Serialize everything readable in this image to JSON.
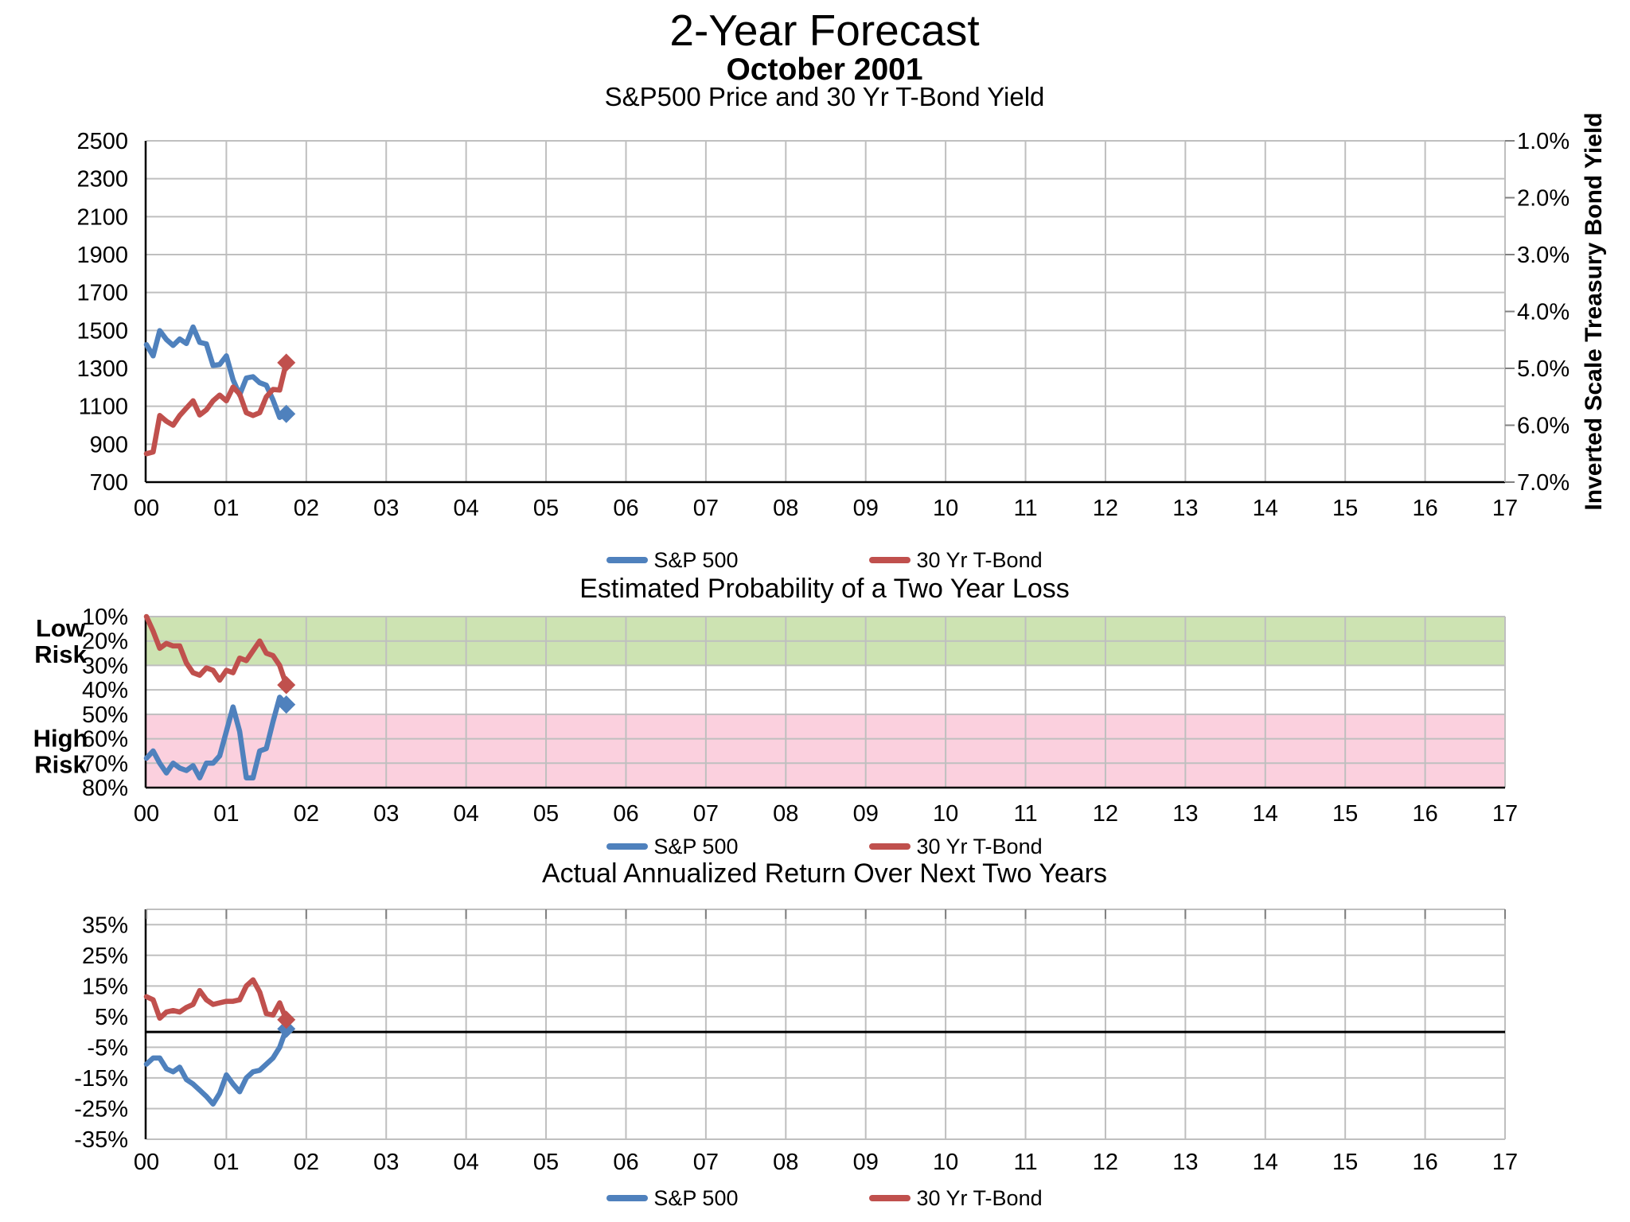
{
  "header": {
    "title": "2-Year Forecast",
    "subtitle": "October 2001"
  },
  "legend": {
    "items": [
      {
        "label": "S&P 500",
        "color": "#4F81BD"
      },
      {
        "label": "30 Yr T-Bond",
        "color": "#C0504D"
      }
    ]
  },
  "colors": {
    "sp500_line": "#4F81BD",
    "tbond_line": "#C0504D",
    "gridline": "#BFBFBF",
    "axis": "#000000",
    "tick_stub": "#808080",
    "low_risk_band": "#CDE3B2",
    "high_risk_band": "#FBD0DE"
  },
  "x_axis": {
    "labels": [
      "00",
      "01",
      "02",
      "03",
      "04",
      "05",
      "06",
      "07",
      "08",
      "09",
      "10",
      "11",
      "12",
      "13",
      "14",
      "15",
      "16",
      "17"
    ],
    "point_interval": "monthly",
    "data_start": "Jan 2000",
    "data_end": "Oct 2001"
  },
  "chart_data": [
    {
      "type": "line",
      "title": "S&P500 Price and 30 Yr T-Bond Yield",
      "y_left": {
        "top_value": 2500,
        "bottom_value": 700,
        "tick_labels": [
          "2500",
          "2300",
          "2100",
          "1900",
          "1700",
          "1500",
          "1300",
          "1100",
          "900",
          "700"
        ]
      },
      "y_right": {
        "title": "Inverted Scale Treasury Bond Yield",
        "top_value": 1,
        "bottom_value": 7,
        "tick_labels": [
          "1.0%",
          "2.0%",
          "3.0%",
          "4.0%",
          "5.0%",
          "6.0%",
          "7.0%"
        ],
        "inverted": true
      },
      "series": [
        {
          "name": "S&P 500",
          "axis": "left",
          "color": "#4F81BD",
          "marker_end": "diamond",
          "values": [
            1425,
            1366,
            1499,
            1452,
            1421,
            1455,
            1431,
            1518,
            1437,
            1429,
            1315,
            1320,
            1366,
            1240,
            1160,
            1249,
            1256,
            1224,
            1211,
            1134,
            1041,
            1060
          ]
        },
        {
          "name": "30 Yr T-Bond",
          "axis": "right",
          "color": "#C0504D",
          "marker_end": "diamond",
          "values": [
            6.5,
            6.47,
            5.83,
            5.93,
            6.0,
            5.83,
            5.7,
            5.57,
            5.82,
            5.73,
            5.57,
            5.47,
            5.57,
            5.33,
            5.45,
            5.78,
            5.83,
            5.78,
            5.5,
            5.37,
            5.38,
            4.9
          ]
        }
      ]
    },
    {
      "type": "line",
      "title": "Estimated Probability of a Two Year Loss",
      "y_axis": {
        "top_value": 10,
        "bottom_value": 80,
        "tick_labels": [
          "10%",
          "20%",
          "30%",
          "40%",
          "50%",
          "60%",
          "70%",
          "80%"
        ]
      },
      "risk_zones": [
        {
          "label": "Low Risk",
          "lines": [
            "Low",
            "Risk"
          ],
          "from": 10,
          "to": 30,
          "color": "#CDE3B2"
        },
        {
          "label": "High Risk",
          "lines": [
            "High",
            "Risk"
          ],
          "from": 50,
          "to": 80,
          "color": "#FBD0DE"
        }
      ],
      "series": [
        {
          "name": "S&P 500",
          "axis": "left",
          "color": "#4F81BD",
          "marker_end": "diamond",
          "values": [
            68,
            65,
            70,
            74,
            70,
            72,
            73,
            71,
            76,
            70,
            70,
            67,
            57,
            47,
            57,
            76,
            76,
            65,
            64,
            53,
            43,
            46
          ]
        },
        {
          "name": "30 Yr T-Bond",
          "axis": "left",
          "color": "#C0504D",
          "marker_end": "diamond",
          "values": [
            10,
            16,
            23,
            21,
            22,
            22,
            29,
            33,
            34,
            31,
            32,
            36,
            32,
            33,
            27,
            28,
            24,
            20,
            25,
            26,
            30,
            38
          ]
        }
      ]
    },
    {
      "type": "line",
      "title": "Actual Annualized Return Over Next Two Years",
      "y_axis": {
        "top_value": 40,
        "bottom_value": -35,
        "tick_labels": [
          "35%",
          "25%",
          "15%",
          "5%",
          "-5%",
          "-15%",
          "-25%",
          "-35%"
        ],
        "zero_line": true
      },
      "series": [
        {
          "name": "S&P 500",
          "axis": "left",
          "color": "#4F81BD",
          "marker_end": "diamond",
          "values": [
            -10.5,
            -8.5,
            -8.5,
            -12,
            -13,
            -11.5,
            -15.5,
            -17,
            -19,
            -21,
            -23.5,
            -20,
            -14,
            -17,
            -19.5,
            -15,
            -13,
            -12.5,
            -10.5,
            -8.5,
            -5,
            1
          ]
        },
        {
          "name": "30 Yr T-Bond",
          "axis": "left",
          "color": "#C0504D",
          "marker_end": "diamond",
          "values": [
            11.5,
            10.5,
            4.5,
            6.5,
            7,
            6.5,
            8,
            9,
            13.5,
            10.5,
            9,
            9.5,
            10,
            10,
            10.5,
            15,
            17,
            13,
            6,
            5.5,
            9.5,
            4
          ]
        }
      ]
    }
  ]
}
